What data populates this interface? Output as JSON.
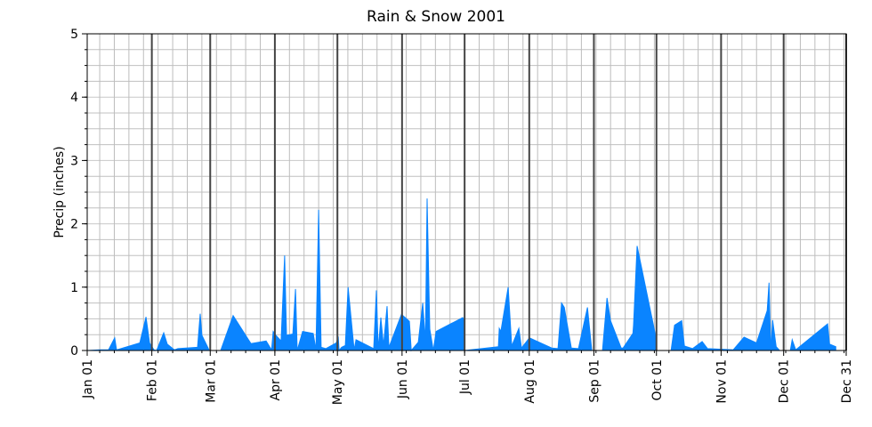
{
  "chart_data": {
    "type": "area",
    "title": "Rain & Snow 2001",
    "xlabel": "",
    "ylabel": "Precip (inches)",
    "ylim": [
      0,
      5
    ],
    "xlim_days": [
      0,
      364
    ],
    "y_ticks": [
      0,
      1,
      2,
      3,
      4,
      5
    ],
    "x_ticks": [
      {
        "label": "Jan 01",
        "day": 0
      },
      {
        "label": "Feb 01",
        "day": 31
      },
      {
        "label": "Mar 01",
        "day": 59
      },
      {
        "label": "Apr 01",
        "day": 90
      },
      {
        "label": "May 01",
        "day": 120
      },
      {
        "label": "Jun 01",
        "day": 151
      },
      {
        "label": "Jul 01",
        "day": 181
      },
      {
        "label": "Aug 01",
        "day": 212
      },
      {
        "label": "Sep 01",
        "day": 243
      },
      {
        "label": "Oct 01",
        "day": 273
      },
      {
        "label": "Nov 01",
        "day": 304
      },
      {
        "label": "Dec 01",
        "day": 334
      },
      {
        "label": "Dec 31",
        "day": 364
      }
    ],
    "grid": true,
    "color": "#0a84ff",
    "series": [
      {
        "name": "Precip",
        "points": [
          [
            0,
            0
          ],
          [
            6,
            0.01
          ],
          [
            10.2,
            0.01
          ],
          [
            13.2,
            0.2
          ],
          [
            14.1,
            0.01
          ],
          [
            25.2,
            0.12
          ],
          [
            28.2,
            0.53
          ],
          [
            29.9,
            0.12
          ],
          [
            32,
            0.01
          ],
          [
            33.3,
            0
          ],
          [
            36.7,
            0.28
          ],
          [
            38.4,
            0.1
          ],
          [
            41.8,
            0.01
          ],
          [
            43.5,
            0.03
          ],
          [
            52.9,
            0.05
          ],
          [
            54.2,
            0.58
          ],
          [
            55,
            0.24
          ],
          [
            58,
            0.04
          ],
          [
            58.5,
            0
          ],
          [
            64,
            0
          ],
          [
            70,
            0.55
          ],
          [
            78.5,
            0.11
          ],
          [
            85.8,
            0.15
          ],
          [
            88.4,
            0.01
          ],
          [
            89.2,
            0.3
          ],
          [
            90.5,
            0.24
          ],
          [
            93,
            0.15
          ],
          [
            94.7,
            1.5
          ],
          [
            95.6,
            0.24
          ],
          [
            98.6,
            0.26
          ],
          [
            99.9,
            0.97
          ],
          [
            100.7,
            0
          ],
          [
            103.3,
            0.3
          ],
          [
            108.4,
            0.27
          ],
          [
            109.7,
            0.01
          ],
          [
            111,
            2.22
          ],
          [
            112.2,
            0.05
          ],
          [
            114.4,
            0.03
          ],
          [
            119.5,
            0.12
          ],
          [
            120.4,
            0.22
          ],
          [
            120.8,
            0
          ],
          [
            122,
            0.05
          ],
          [
            123.8,
            0.08
          ],
          [
            125.1,
            1.0
          ],
          [
            128,
            0.01
          ],
          [
            128.9,
            0.17
          ],
          [
            137.4,
            0.03
          ],
          [
            138.7,
            0.95
          ],
          [
            139.6,
            0.01
          ],
          [
            140.8,
            0.52
          ],
          [
            142.1,
            0.08
          ],
          [
            143.8,
            0.7
          ],
          [
            144.7,
            0.05
          ],
          [
            150.7,
            0.57
          ],
          [
            154.5,
            0.46
          ],
          [
            155.4,
            0
          ],
          [
            158.8,
            0.13
          ],
          [
            160.9,
            0.75
          ],
          [
            162.2,
            0.14
          ],
          [
            163,
            2.4
          ],
          [
            164.3,
            0.34
          ],
          [
            166,
            0
          ],
          [
            167.3,
            0.3
          ],
          [
            180.1,
            0.52
          ],
          [
            180.5,
            0.5
          ],
          [
            181,
            0
          ],
          [
            197.2,
            0.06
          ],
          [
            197.6,
            0.35
          ],
          [
            198.4,
            0.3
          ],
          [
            201.9,
            1.0
          ],
          [
            203.6,
            0.07
          ],
          [
            207,
            0.35
          ],
          [
            208.3,
            0.04
          ],
          [
            212.1,
            0.2
          ],
          [
            222.8,
            0.04
          ],
          [
            225.8,
            0.03
          ],
          [
            227.5,
            0.75
          ],
          [
            228.8,
            0.68
          ],
          [
            232.2,
            0.04
          ],
          [
            235.6,
            0.03
          ],
          [
            239.9,
            0.68
          ],
          [
            242,
            0
          ],
          [
            247.1,
            0
          ],
          [
            249.3,
            0.83
          ],
          [
            251,
            0.47
          ],
          [
            256.1,
            0.04
          ],
          [
            257,
            0.04
          ],
          [
            261.7,
            0.27
          ],
          [
            262,
            0.4
          ],
          [
            263.7,
            1.65
          ],
          [
            272.7,
            0.22
          ],
          [
            272.8,
            0
          ],
          [
            280,
            0
          ],
          [
            281.7,
            0.4
          ],
          [
            285.1,
            0.47
          ],
          [
            286.4,
            0.07
          ],
          [
            290.3,
            0.03
          ],
          [
            294.9,
            0.14
          ],
          [
            297.5,
            0.03
          ],
          [
            309.8,
            0.01
          ],
          [
            315,
            0.21
          ],
          [
            321,
            0.12
          ],
          [
            326.1,
            0.63
          ],
          [
            327,
            1.07
          ],
          [
            327.8,
            0
          ],
          [
            328.7,
            0.48
          ],
          [
            330.4,
            0.06
          ],
          [
            332.1,
            0
          ],
          [
            337.2,
            0
          ],
          [
            338.1,
            0.17
          ],
          [
            339.8,
            0.01
          ],
          [
            355.1,
            0.42
          ],
          [
            356,
            0.1
          ],
          [
            359,
            0.06
          ]
        ]
      }
    ]
  }
}
